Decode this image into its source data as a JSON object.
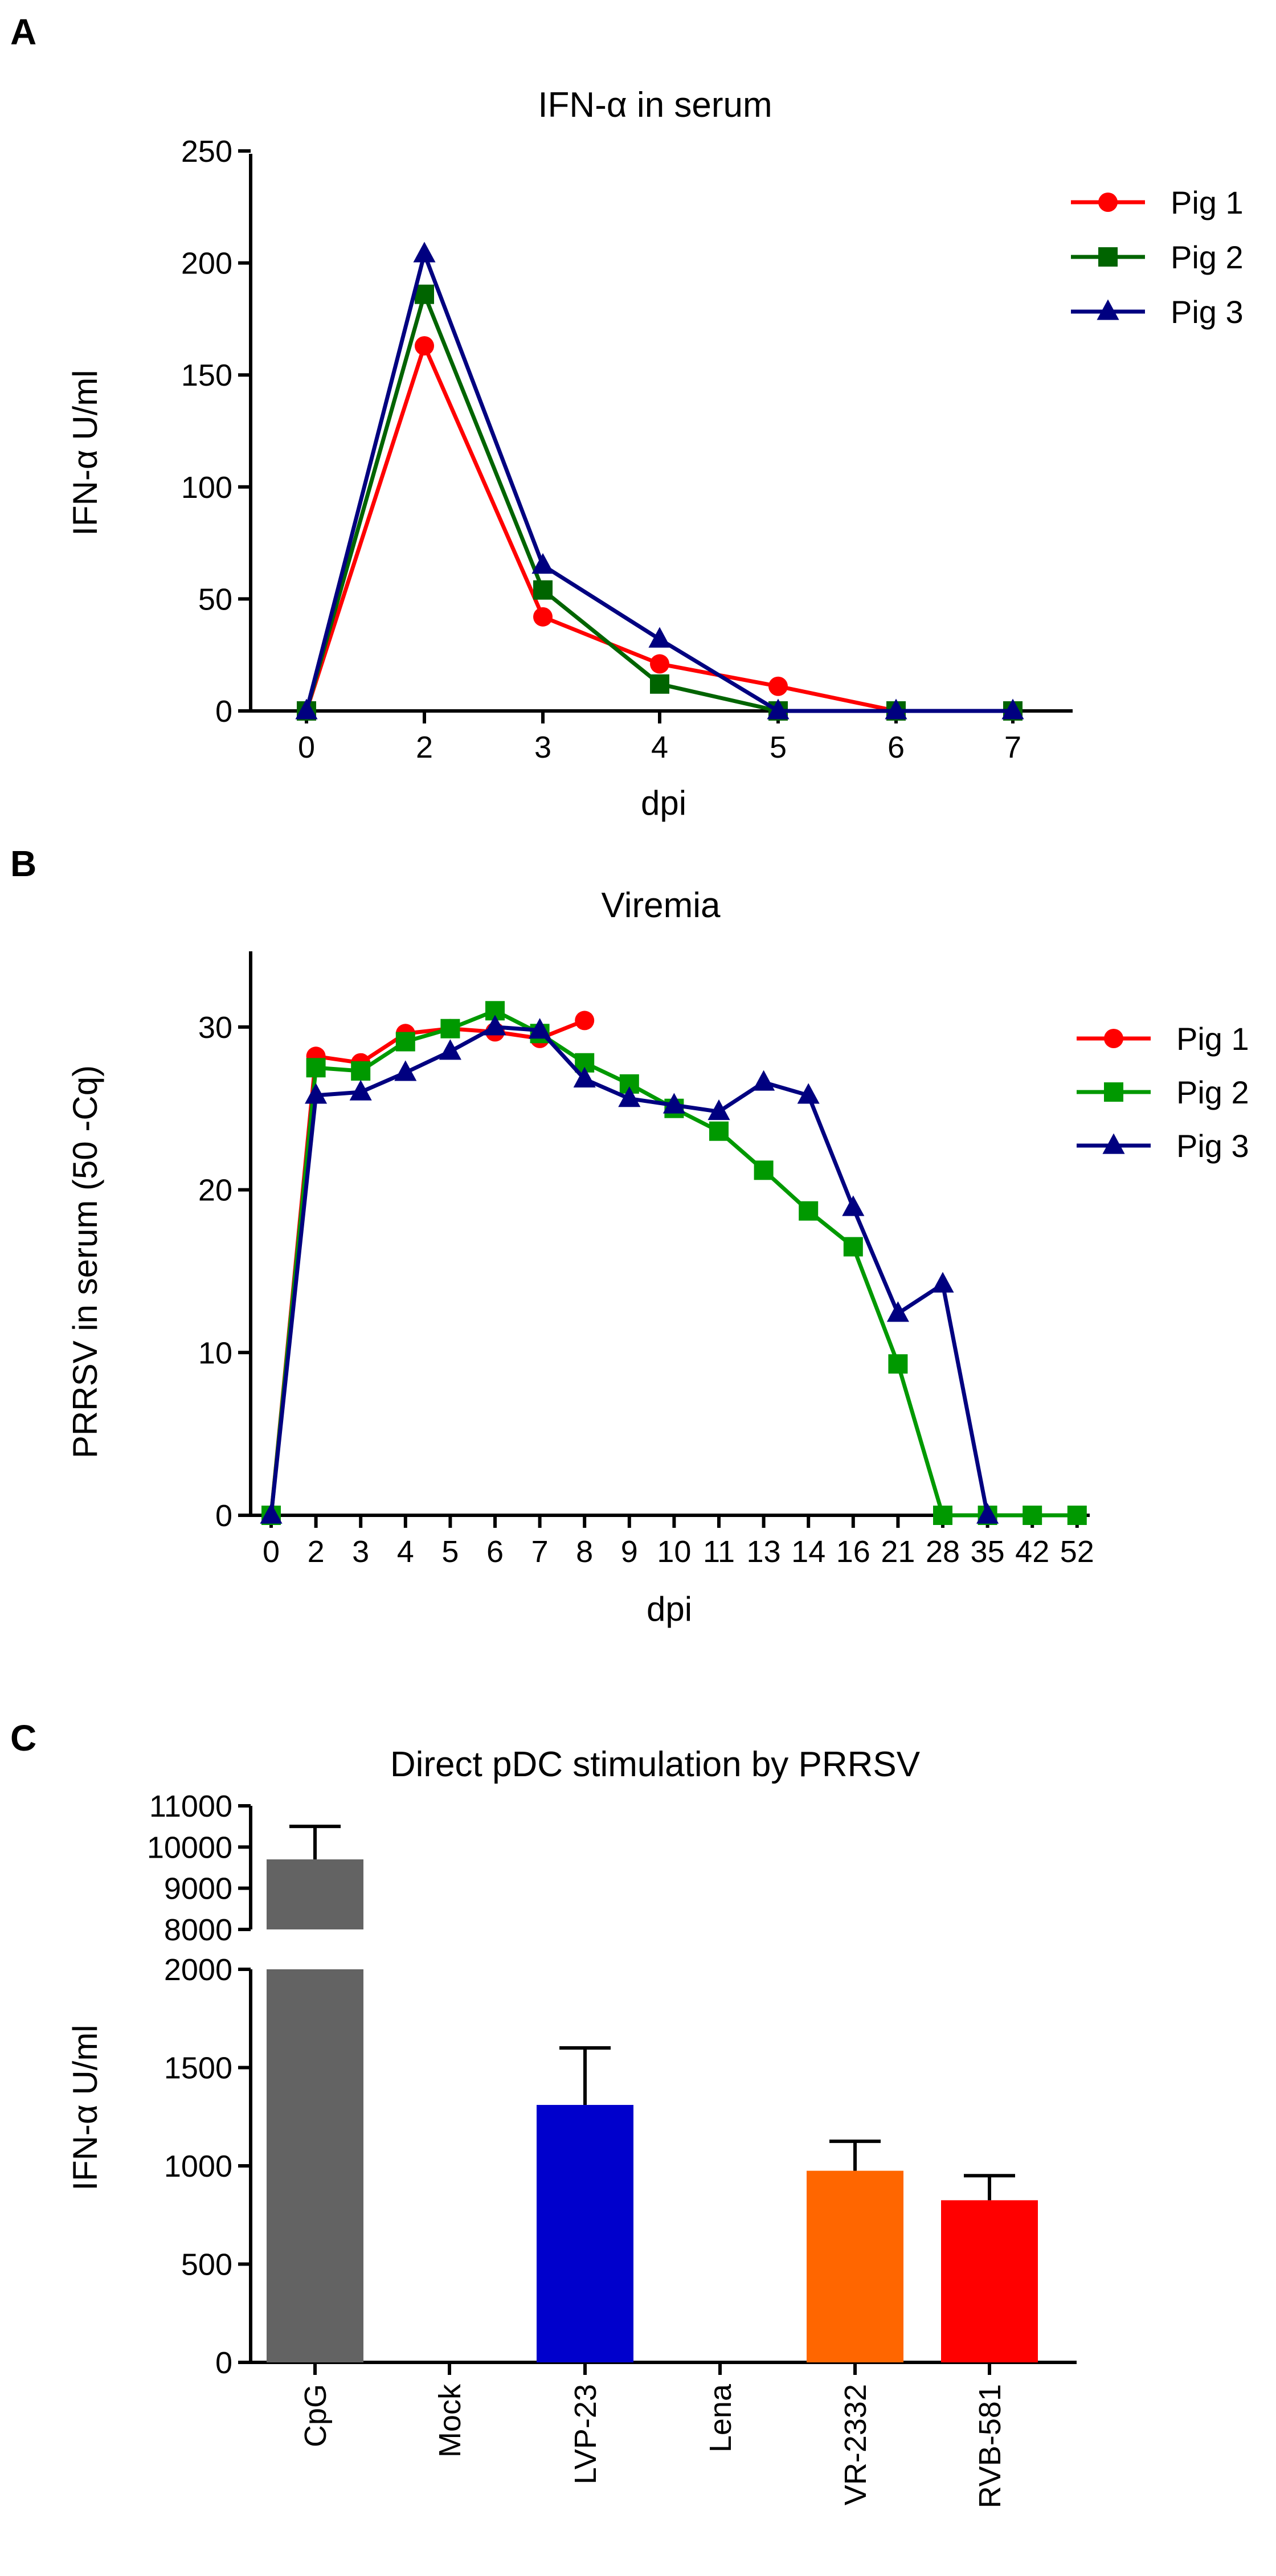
{
  "chart_data": [
    {
      "panel": "A",
      "type": "line",
      "title": "IFN-α in serum",
      "xlabel": "dpi",
      "ylabel": "IFN-α U/ml",
      "x": [
        "0",
        "2",
        "3",
        "4",
        "5",
        "6",
        "7"
      ],
      "ylim": [
        0,
        250
      ],
      "yticks": [
        0,
        50,
        100,
        150,
        200,
        250
      ],
      "legend": "top-right",
      "series": [
        {
          "name": "Pig 1",
          "color": "#ff0000",
          "marker": "circle",
          "values": [
            0,
            163,
            42,
            21,
            11,
            0,
            null
          ]
        },
        {
          "name": "Pig 2",
          "color": "#006400",
          "marker": "square",
          "values": [
            0,
            186,
            54,
            12,
            0,
            0,
            0
          ]
        },
        {
          "name": "Pig 3",
          "color": "#000080",
          "marker": "triangle",
          "values": [
            0,
            204,
            65,
            32,
            0,
            0,
            0
          ]
        }
      ]
    },
    {
      "panel": "B",
      "type": "line",
      "title": "Viremia",
      "xlabel": "dpi",
      "ylabel": "PRRSV in serum (50 -Cq)",
      "x": [
        "0",
        "2",
        "3",
        "4",
        "5",
        "6",
        "7",
        "8",
        "9",
        "10",
        "11",
        "13",
        "14",
        "16",
        "21",
        "28",
        "35",
        "42",
        "52"
      ],
      "ylim": [
        0,
        35
      ],
      "yticks": [
        0,
        10,
        20,
        30
      ],
      "legend": "top-right",
      "series": [
        {
          "name": "Pig 1",
          "color": "#ff0000",
          "marker": "circle",
          "values": [
            0,
            28.2,
            27.8,
            29.6,
            29.9,
            29.7,
            29.3,
            30.4,
            null,
            null,
            null,
            null,
            null,
            null,
            null,
            null,
            null,
            null,
            null
          ]
        },
        {
          "name": "Pig 2",
          "color": "#009900",
          "marker": "square",
          "values": [
            0,
            27.5,
            27.3,
            29.1,
            29.9,
            31.0,
            29.6,
            27.8,
            26.5,
            25.0,
            23.6,
            21.2,
            18.7,
            16.5,
            9.3,
            0,
            0,
            0,
            0
          ]
        },
        {
          "name": "Pig 3",
          "color": "#000080",
          "marker": "triangle",
          "values": [
            0,
            25.8,
            26.0,
            27.2,
            28.5,
            30.0,
            29.8,
            26.8,
            25.6,
            25.2,
            24.8,
            26.6,
            25.8,
            18.9,
            12.4,
            14.2,
            0,
            null,
            null
          ]
        }
      ]
    },
    {
      "panel": "C",
      "type": "bar",
      "title": "Direct pDC stimulation by PRRSV",
      "xlabel": "",
      "ylabel": "IFN-α U/ml",
      "categories": [
        "CpG",
        "Mock",
        "LVP-23",
        "Lena",
        "VR-2332",
        "RVB-581"
      ],
      "values": [
        9700,
        0,
        1310,
        0,
        975,
        825
      ],
      "errors": [
        800,
        0,
        290,
        0,
        150,
        125
      ],
      "colors": [
        "#636363",
        "#636363",
        "#0000cc",
        "#636363",
        "#ff6600",
        "#ff0000"
      ],
      "ylim_lower": [
        0,
        2000
      ],
      "ylim_upper": [
        8000,
        11000
      ],
      "yticks_lower": [
        0,
        500,
        1000,
        1500,
        2000
      ],
      "yticks_upper": [
        8000,
        9000,
        10000,
        11000
      ]
    }
  ],
  "panel_labels": [
    "A",
    "B",
    "C"
  ]
}
